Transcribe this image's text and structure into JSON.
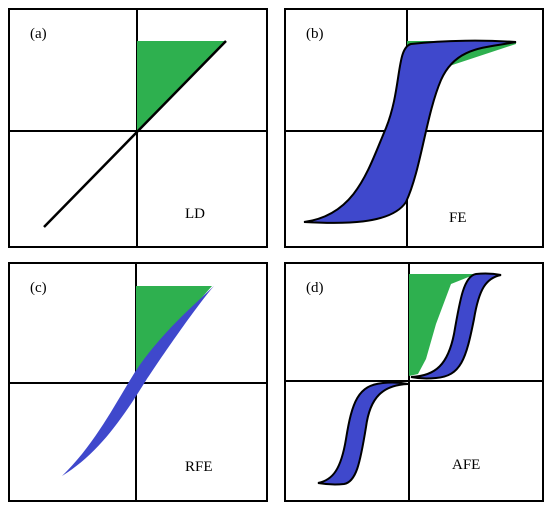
{
  "panels": [
    {
      "letter": "(a)",
      "type": "LD"
    },
    {
      "letter": "(b)",
      "type": "FE"
    },
    {
      "letter": "(c)",
      "type": "RFE"
    },
    {
      "letter": "(d)",
      "type": "AFE"
    }
  ],
  "colors": {
    "energy_fill": "#2eb04f",
    "loop_fill": "#3f48cc",
    "axis": "#000000",
    "border": "#000000"
  }
}
